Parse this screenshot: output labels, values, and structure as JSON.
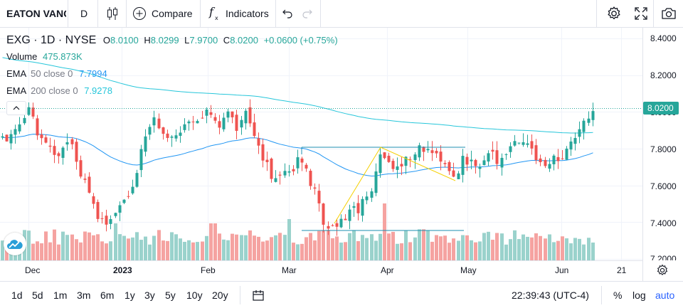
{
  "toolbar": {
    "symbol_label": "EATON VANC",
    "interval": "D",
    "compare_label": "Compare",
    "indicators_label": "Indicators",
    "icons": [
      "candles-icon",
      "plus-circle-icon",
      "fx-icon",
      "undo-icon",
      "redo-icon",
      "gear-icon",
      "fullscreen-icon",
      "camera-icon"
    ]
  },
  "legend": {
    "title": "EXG · 1D · NYSE",
    "o_label": "O",
    "o": "8.0100",
    "h_label": "H",
    "h": "8.0299",
    "l_label": "L",
    "l": "7.9700",
    "c_label": "C",
    "c": "8.0200",
    "change": "+0.0600 (+0.75%)",
    "volume_label": "Volume",
    "volume": "475.873K",
    "ema50_label": "EMA",
    "ema50_params": "50 close 0",
    "ema50": "7.7994",
    "ema200_label": "EMA",
    "ema200_params": "200 close 0",
    "ema200": "7.9278"
  },
  "price_axis": {
    "ticks": [
      "8.4000",
      "8.2000",
      "8.0000",
      "7.8000",
      "7.6000",
      "7.4000",
      "7.2000"
    ],
    "last_price": "8.0200"
  },
  "time_axis": [
    "Dec",
    "2023",
    "Feb",
    "Mar",
    "Apr",
    "May",
    "Jun",
    "21"
  ],
  "bottom": {
    "ranges": [
      "1d",
      "5d",
      "1m",
      "3m",
      "6m",
      "1y",
      "3y",
      "5y",
      "10y",
      "20y"
    ],
    "time": "22:39:43 (UTC-4)",
    "percent": "%",
    "log": "log",
    "auto": "auto"
  },
  "colors": {
    "up": "#26a69a",
    "down": "#ef5350",
    "ema50": "#2196f3",
    "ema200": "#26c6da",
    "vol_up": "#9ad2cc",
    "vol_down": "#f5a3a1",
    "accent": "#2962ff"
  },
  "chart_data": {
    "type": "candlestick",
    "ylim": [
      7.2,
      8.4
    ],
    "last_close": 8.02,
    "ema50_level": 7.7994,
    "ema200_level": 7.9278
  }
}
